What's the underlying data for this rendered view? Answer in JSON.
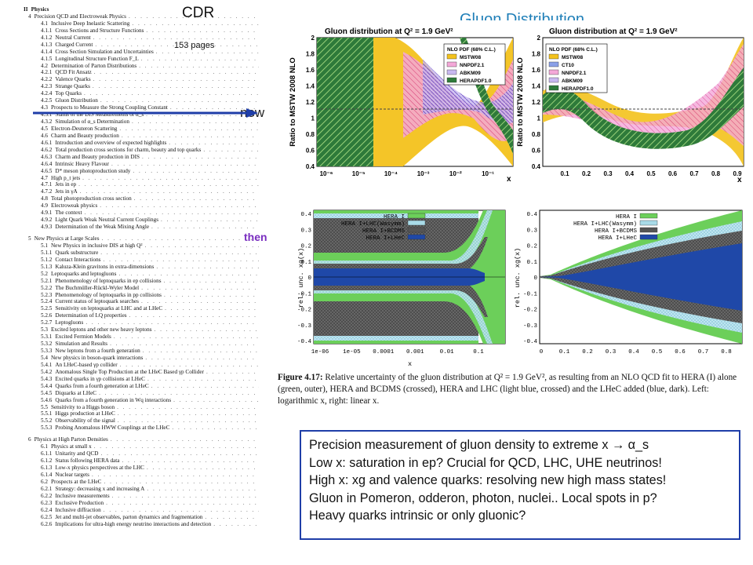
{
  "labels": {
    "cdr": "CDR",
    "pages": "153 pages",
    "gluon_title": "Gluon Distribution",
    "now": "now",
    "then": "then"
  },
  "toc": [
    {
      "level": 0,
      "num": "II",
      "title": "Physics"
    },
    {
      "level": 1,
      "num": "4",
      "title": "Precision QCD and Electroweak Physics",
      "page": ""
    },
    {
      "level": 2,
      "num": "4.1",
      "title": "Inclusive Deep Inelastic Scattering"
    },
    {
      "level": 3,
      "num": "4.1.1",
      "title": "Cross Sections and Structure Functions"
    },
    {
      "level": 3,
      "num": "4.1.2",
      "title": "Neutral Current"
    },
    {
      "level": 3,
      "num": "4.1.3",
      "title": "Charged Current"
    },
    {
      "level": 3,
      "num": "4.1.4",
      "title": "Cross Section Simulation and Uncertainties"
    },
    {
      "level": 3,
      "num": "4.1.5",
      "title": "Longitudinal Structure Function F_L"
    },
    {
      "level": 2,
      "num": "4.2",
      "title": "Determination of Parton Distributions"
    },
    {
      "level": 3,
      "num": "4.2.1",
      "title": "QCD Fit Ansatz"
    },
    {
      "level": 3,
      "num": "4.2.2",
      "title": "Valence Quarks"
    },
    {
      "level": 3,
      "num": "4.2.3",
      "title": "Strange Quarks"
    },
    {
      "level": 3,
      "num": "4.2.4",
      "title": "Top Quarks"
    },
    {
      "level": 3,
      "num": "4.2.5",
      "title": "Gluon Distribution"
    },
    {
      "level": 2,
      "num": "4.3",
      "title": "Prospects to Measure the Strong Coupling Constant"
    },
    {
      "level": 3,
      "num": "4.3.1",
      "title": "Status of the DIS Measurements of α_s"
    },
    {
      "level": 3,
      "num": "4.3.2",
      "title": "Simulation of α_s Determination"
    },
    {
      "level": 2,
      "num": "4.5",
      "title": "Electron-Deuteron Scattering"
    },
    {
      "level": 2,
      "num": "4.6",
      "title": "Charm and Beauty production"
    },
    {
      "level": 3,
      "num": "4.6.1",
      "title": "Introduction and overview of expected highlights"
    },
    {
      "level": 3,
      "num": "4.6.2",
      "title": "Total production cross sections for charm, beauty and top quarks"
    },
    {
      "level": 3,
      "num": "4.6.3",
      "title": "Charm and Beauty production in DIS"
    },
    {
      "level": 3,
      "num": "4.6.4",
      "title": "Intrinsic Heavy Flavour"
    },
    {
      "level": 3,
      "num": "4.6.5",
      "title": "D* meson photoproduction study"
    },
    {
      "level": 2,
      "num": "4.7",
      "title": "High p_t jets"
    },
    {
      "level": 3,
      "num": "4.7.1",
      "title": "Jets in ep"
    },
    {
      "level": 3,
      "num": "4.7.2",
      "title": "Jets in γA"
    },
    {
      "level": 2,
      "num": "4.8",
      "title": "Total photoproduction cross section"
    },
    {
      "level": 2,
      "num": "4.9",
      "title": "Electroweak physics"
    },
    {
      "level": 3,
      "num": "4.9.1",
      "title": "The context"
    },
    {
      "level": 3,
      "num": "4.9.2",
      "title": "Light Quark Weak Neutral Current Couplings"
    },
    {
      "level": 3,
      "num": "4.9.3",
      "title": "Determination of the Weak Mixing Angle"
    },
    {
      "level": -1
    },
    {
      "level": 1,
      "num": "5",
      "title": "New Physics at Large Scales"
    },
    {
      "level": 2,
      "num": "5.1",
      "title": "New Physics in inclusive DIS at high Q²"
    },
    {
      "level": 3,
      "num": "5.1.1",
      "title": "Quark substructure"
    },
    {
      "level": 3,
      "num": "5.1.2",
      "title": "Contact Interactions"
    },
    {
      "level": 3,
      "num": "5.1.3",
      "title": "Kaluza-Klein gravitons in extra-dimensions"
    },
    {
      "level": 2,
      "num": "5.2",
      "title": "Leptoquarks and leptogluons"
    },
    {
      "level": 3,
      "num": "5.2.1",
      "title": "Phenomenology of leptoquarks in ep collisions"
    },
    {
      "level": 3,
      "num": "5.2.2",
      "title": "The Buchmüller-Rückl-Wyler Model"
    },
    {
      "level": 3,
      "num": "5.2.3",
      "title": "Phenomenology of leptoquarks in pp collisions"
    },
    {
      "level": 3,
      "num": "5.2.4",
      "title": "Current status of leptoquark searches"
    },
    {
      "level": 3,
      "num": "5.2.5",
      "title": "Sensitivity on leptoquarks at LHC and at LHeC"
    },
    {
      "level": 3,
      "num": "5.2.6",
      "title": "Determination of LQ properties"
    },
    {
      "level": 3,
      "num": "5.2.7",
      "title": "Leptogluons"
    },
    {
      "level": 2,
      "num": "5.3",
      "title": "Excited leptons and other new heavy leptons"
    },
    {
      "level": 3,
      "num": "5.3.1",
      "title": "Excited Fermion Models"
    },
    {
      "level": 3,
      "num": "5.3.2",
      "title": "Simulation and Results"
    },
    {
      "level": 3,
      "num": "5.3.3",
      "title": "New leptons from a fourth generation"
    },
    {
      "level": 2,
      "num": "5.4",
      "title": "New physics in boson-quark interactions"
    },
    {
      "level": 3,
      "num": "5.4.1",
      "title": "An LHeC-based γp collider"
    },
    {
      "level": 3,
      "num": "5.4.2",
      "title": "Anomalous Single Top Production at the LHeC Based γp Collider"
    },
    {
      "level": 3,
      "num": "5.4.3",
      "title": "Excited quarks in γp collisions at LHeC"
    },
    {
      "level": 3,
      "num": "5.4.4",
      "title": "Quarks from a fourth generation at LHeC"
    },
    {
      "level": 3,
      "num": "5.4.5",
      "title": "Diquarks at LHeC"
    },
    {
      "level": 3,
      "num": "5.4.6",
      "title": "Quarks from a fourth generation in Wq interactions"
    },
    {
      "level": 2,
      "num": "5.5",
      "title": "Sensitivity to a Higgs boson"
    },
    {
      "level": 3,
      "num": "5.5.1",
      "title": "Higgs production at LHeC"
    },
    {
      "level": 3,
      "num": "5.5.2",
      "title": "Observability of the signal"
    },
    {
      "level": 3,
      "num": "5.5.3",
      "title": "Probing Anomalous HWW Couplings at the LHeC"
    },
    {
      "level": -1
    },
    {
      "level": 1,
      "num": "6",
      "title": "Physics at High Parton Densities"
    },
    {
      "level": 2,
      "num": "6.1",
      "title": "Physics at small x"
    },
    {
      "level": 3,
      "num": "6.1.1",
      "title": "Unitarity and QCD"
    },
    {
      "level": 3,
      "num": "6.1.2",
      "title": "Status following HERA data"
    },
    {
      "level": 3,
      "num": "6.1.3",
      "title": "Low-x physics perspectives at the LHC"
    },
    {
      "level": 3,
      "num": "6.1.4",
      "title": "Nuclear targets"
    },
    {
      "level": 2,
      "num": "6.2",
      "title": "Prospects at the LHeC"
    },
    {
      "level": 3,
      "num": "6.2.1",
      "title": "Strategy: decreasing x and increasing A"
    },
    {
      "level": 3,
      "num": "6.2.2",
      "title": "Inclusive measurements"
    },
    {
      "level": 3,
      "num": "6.2.3",
      "title": "Exclusive Production"
    },
    {
      "level": 3,
      "num": "6.2.4",
      "title": "Inclusive diffraction"
    },
    {
      "level": 3,
      "num": "6.2.5",
      "title": "Jet and multi-jet observables, parton dynamics and fragmentation"
    },
    {
      "level": 3,
      "num": "6.2.6",
      "title": "Implications for ultra-high energy neutrino interactions and detection"
    }
  ],
  "plots": {
    "top_title": "Gluon distribution at Q² = 1.9 GeV²",
    "top_ylabel": "Ratio to MSTW 2008 NLO",
    "top_xlabel": "x",
    "top_left_xticks": [
      "10⁻⁶",
      "10⁻⁵",
      "10⁻⁴",
      "10⁻³",
      "10⁻²",
      "10⁻¹"
    ],
    "top_right_xticks": [
      "0.1",
      "0.2",
      "0.3",
      "0.4",
      "0.5",
      "0.6",
      "0.7",
      "0.8",
      "0.9"
    ],
    "top_yticks": [
      "0.4",
      "0.6",
      "0.8",
      "1",
      "1.2",
      "1.4",
      "1.6",
      "1.8",
      "2"
    ],
    "legend_top_left": {
      "header": "NLO PDF (68% C.L.)",
      "items": [
        "MSTW08",
        "NNPDF2.1",
        "ABKM09",
        "HERAPDF1.0"
      ]
    },
    "legend_top_right": {
      "header": "NLO PDF (68% C.L.)",
      "items": [
        "MSTW08",
        "CT10",
        "NNPDF2.1",
        "ABKM09",
        "HERAPDF1.0"
      ]
    },
    "bottom_ylabel": "rel. unc. xg(x)",
    "bottom_xlabel": "x",
    "bottom_yticks": [
      "0.4",
      "0.3",
      "0.2",
      "0.1",
      "0",
      "-0.1",
      "-0.2",
      "-0.3",
      "-0.4"
    ],
    "bottom_left_xticks": [
      "1e-06",
      "1e-05",
      "0.0001",
      "0.001",
      "0.01",
      "0.1"
    ],
    "bottom_right_xticks": [
      "0",
      "0.1",
      "0.2",
      "0.3",
      "0.4",
      "0.5",
      "0.6",
      "0.7",
      "0.8"
    ],
    "bottom_legend": [
      "HERA I",
      "HERA I+LHC(Wasymm)",
      "HERA I+BCDMS",
      "HERA I+LHeC"
    ],
    "colors": {
      "hera": "#6ccf5a",
      "lhc": "#a9dbe8",
      "bcdms": "#555555",
      "lhec": "#1f48a8"
    }
  },
  "caption": {
    "label": "Figure 4.17:",
    "text": " Relative uncertainty of the gluon distribution at Q² = 1.9 GeV², as resulting from an NLO QCD fit to HERA (I) alone (green, outer), HERA and BCDMS (crossed), HERA and LHC (light blue, crossed) and the LHeC added (blue, dark). Left: logarithmic x, right: linear x."
  },
  "summary": [
    "Precision measurement  of gluon density to extreme x → α_s",
    "Low x: saturation in ep? Crucial for QCD, LHC, UHE neutrinos!",
    "High x: xg and valence quarks: resolving new high mass states!",
    "Gluon in Pomeron, odderon, photon, nuclei.. Local spots in p?",
    "Heavy quarks intrinsic or only gluonic?"
  ]
}
